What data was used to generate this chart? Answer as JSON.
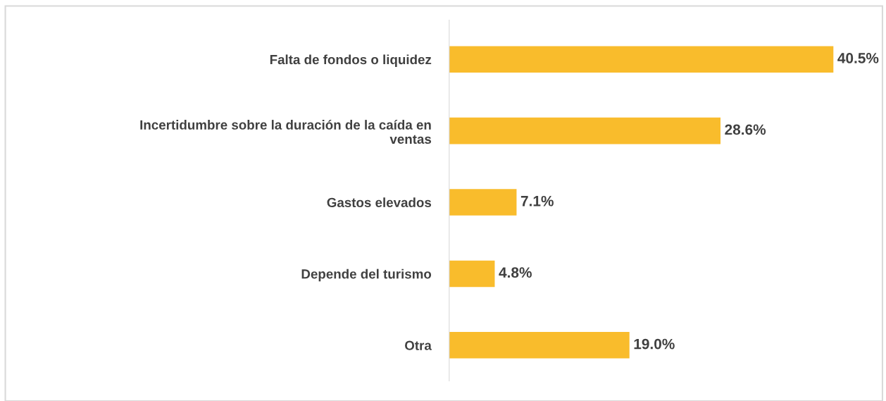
{
  "chart_data": {
    "type": "bar",
    "orientation": "horizontal",
    "categories": [
      "Falta de fondos o liquidez",
      "Incertidumbre sobre la duración de la caída en\nventas",
      "Gastos elevados",
      "Depende del turismo",
      "Otra"
    ],
    "values": [
      40.5,
      28.6,
      7.1,
      4.8,
      19.0
    ],
    "value_labels": [
      "40.5%",
      "28.6%",
      "7.1%",
      "4.8%",
      "19.0%"
    ],
    "color": "#f9bc2c",
    "grid": false,
    "legend": false
  }
}
